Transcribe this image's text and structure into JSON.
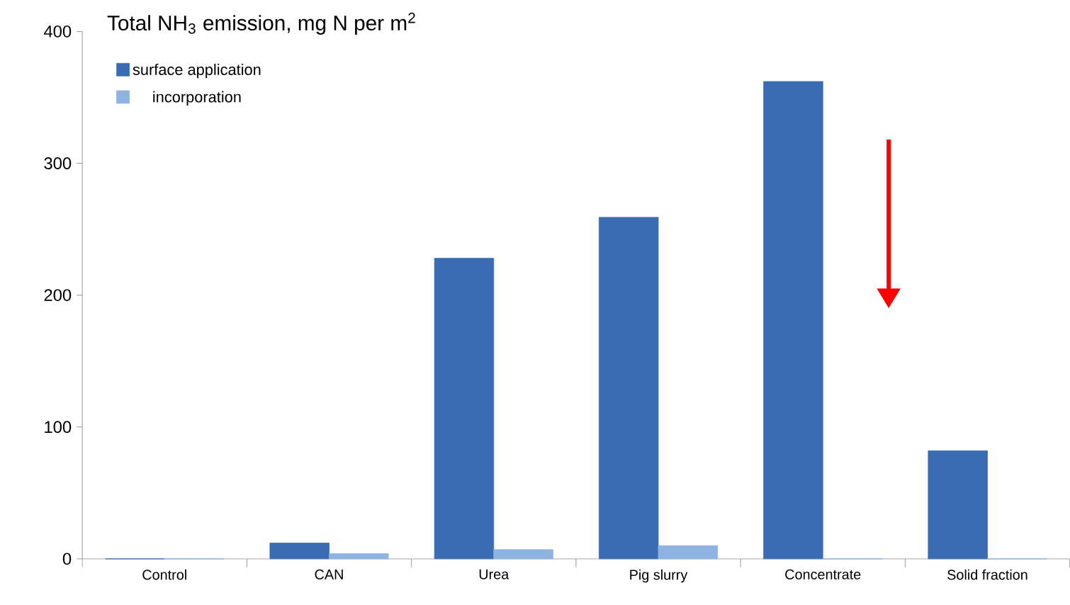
{
  "chart_data": {
    "type": "bar",
    "title": "Total NH$_{3}$ emission, mg N per m$^{2}$",
    "categories": [
      "Control",
      "CAN",
      "Urea",
      "Pig slurry",
      "Concentrate",
      "Solid fraction"
    ],
    "series": [
      {
        "name": "surface application",
        "color": "#3a6cb4",
        "values": [
          0,
          12,
          228,
          259,
          362,
          82
        ]
      },
      {
        "name": "incorporation",
        "color": "#8fb3e0",
        "values": [
          0,
          4,
          7,
          10,
          0,
          0
        ]
      }
    ],
    "ylim": [
      0,
      400
    ],
    "yticks": [
      0,
      100,
      200,
      300,
      400
    ],
    "legend": "top left"
  }
}
